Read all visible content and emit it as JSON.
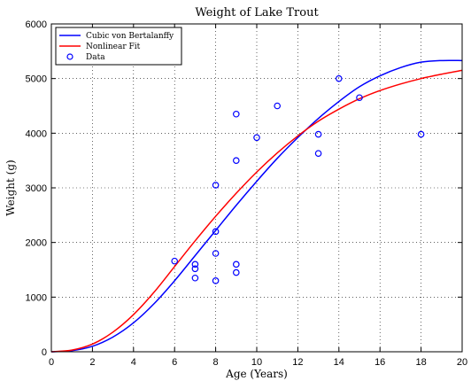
{
  "chart_data": {
    "type": "line",
    "title": "Weight of Lake Trout",
    "xlabel": "Age (Years)",
    "ylabel": "Weight (g)",
    "xlim": [
      0,
      20
    ],
    "ylim": [
      0,
      6000
    ],
    "x_ticks": [
      0,
      2,
      4,
      6,
      8,
      10,
      12,
      14,
      16,
      18,
      20
    ],
    "y_ticks": [
      0,
      1000,
      2000,
      3000,
      4000,
      5000,
      6000
    ],
    "grid": true,
    "legend_position": "top-left",
    "series": [
      {
        "name": "Cubic von Bertalanffy",
        "kind": "line",
        "color": "#0000ff",
        "x": [
          0,
          1,
          2,
          3,
          4,
          5,
          6,
          7,
          8,
          9,
          10,
          11,
          12,
          13,
          14,
          15,
          16,
          17,
          18,
          19,
          20
        ],
        "y": [
          0,
          20,
          100,
          270,
          530,
          880,
          1300,
          1760,
          2220,
          2680,
          3120,
          3540,
          3920,
          4270,
          4580,
          4850,
          5050,
          5200,
          5300,
          5330,
          5330
        ]
      },
      {
        "name": "Nonlinear Fit",
        "kind": "line",
        "color": "#ff0000",
        "x": [
          0,
          1,
          2,
          3,
          4,
          5,
          6,
          7,
          8,
          9,
          10,
          11,
          12,
          13,
          14,
          15,
          16,
          17,
          18,
          19,
          20
        ],
        "y": [
          0,
          30,
          140,
          360,
          680,
          1090,
          1560,
          2030,
          2480,
          2900,
          3290,
          3640,
          3950,
          4220,
          4440,
          4630,
          4780,
          4900,
          5000,
          5080,
          5150
        ]
      },
      {
        "name": "Data",
        "kind": "scatter",
        "color": "#0000ff",
        "points": [
          [
            6,
            1660
          ],
          [
            7,
            1600
          ],
          [
            7,
            1520
          ],
          [
            7,
            1350
          ],
          [
            8,
            3050
          ],
          [
            8,
            2200
          ],
          [
            8,
            1800
          ],
          [
            8,
            1300
          ],
          [
            9,
            4350
          ],
          [
            9,
            3500
          ],
          [
            9,
            1600
          ],
          [
            9,
            1450
          ],
          [
            10,
            3920
          ],
          [
            11,
            4500
          ],
          [
            13,
            3980
          ],
          [
            13,
            3630
          ],
          [
            14,
            5000
          ],
          [
            15,
            4650
          ],
          [
            18,
            3980
          ]
        ]
      }
    ]
  }
}
